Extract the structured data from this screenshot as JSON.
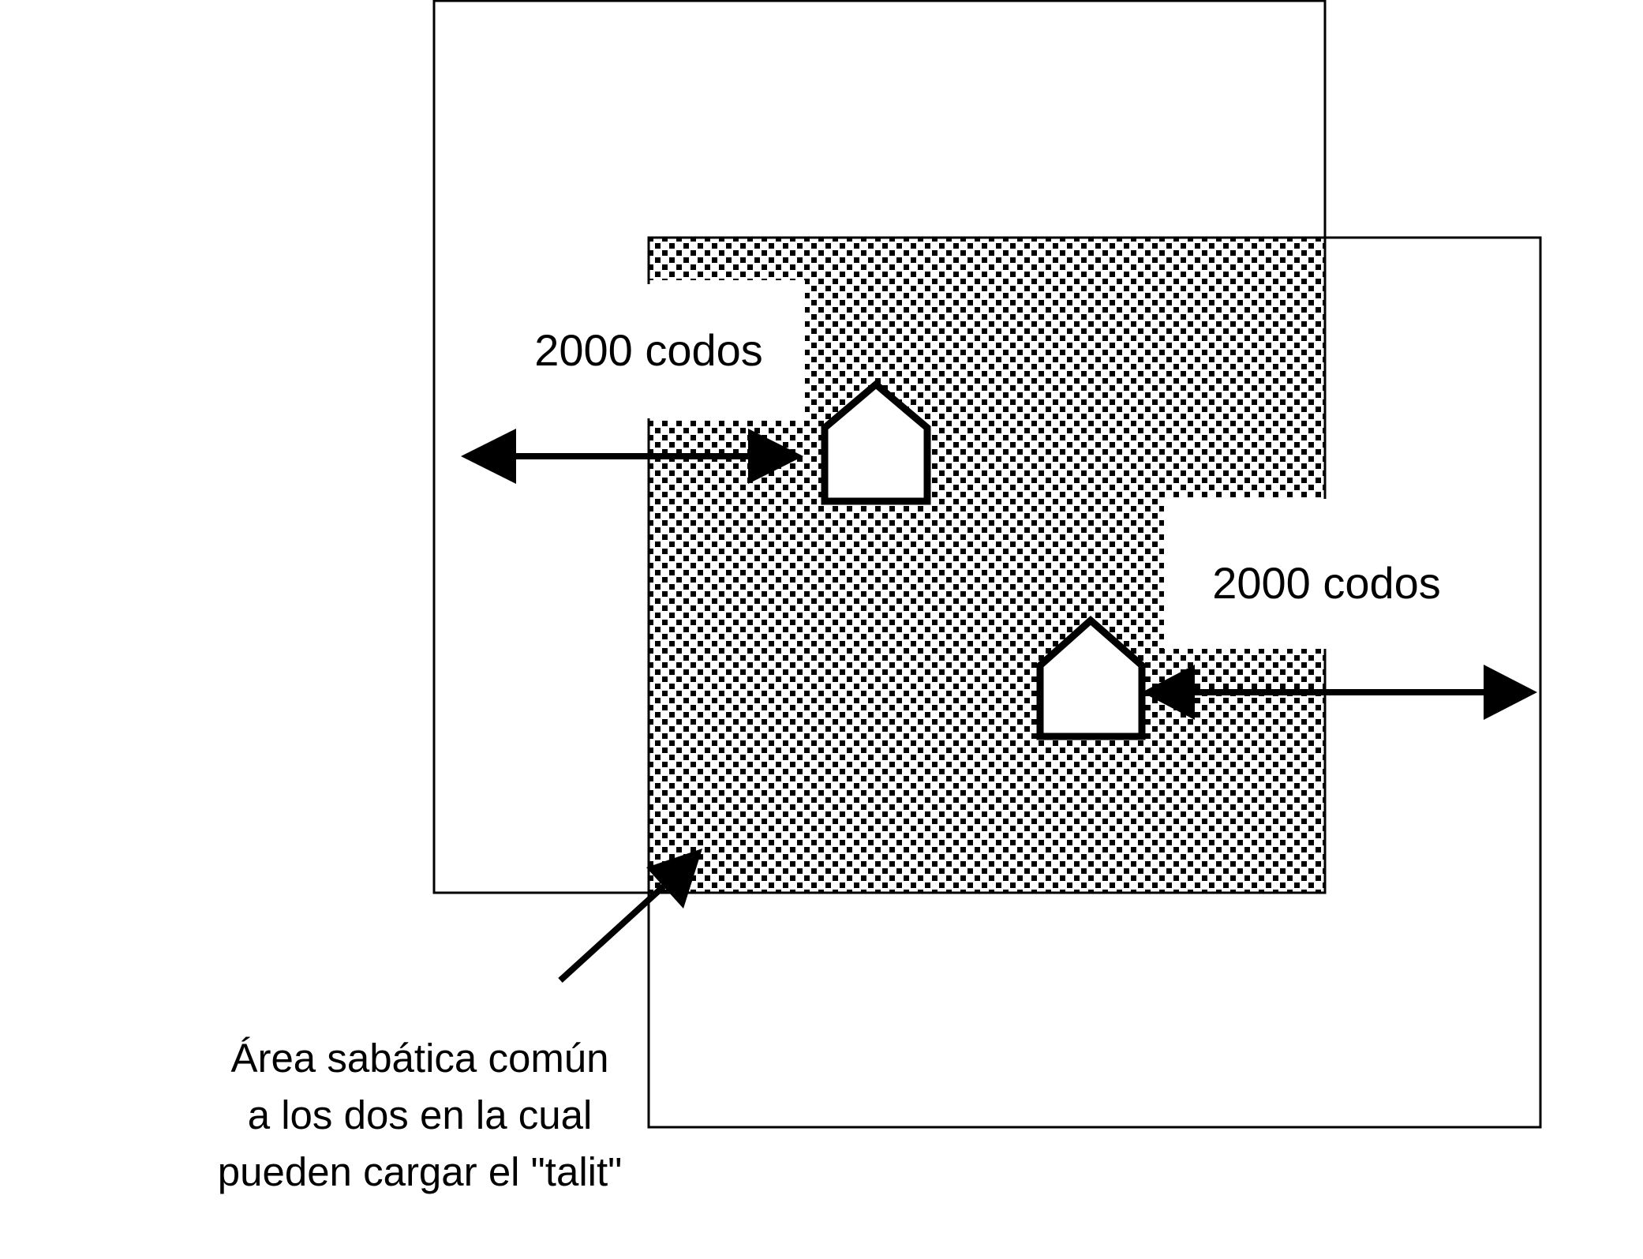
{
  "labels": {
    "distance_left": "2000 codos",
    "distance_right": "2000 codos",
    "caption_line1": "Área sabática común",
    "caption_line2": "a los dos en la cual",
    "caption_line3": "pueden cargar el \"talit\""
  },
  "icons": {
    "house": "house-icon",
    "arrow": "double-arrow",
    "pointer": "pointer-arrow"
  },
  "colors": {
    "ink": "#000000",
    "background": "#ffffff",
    "dot": "#000000"
  }
}
